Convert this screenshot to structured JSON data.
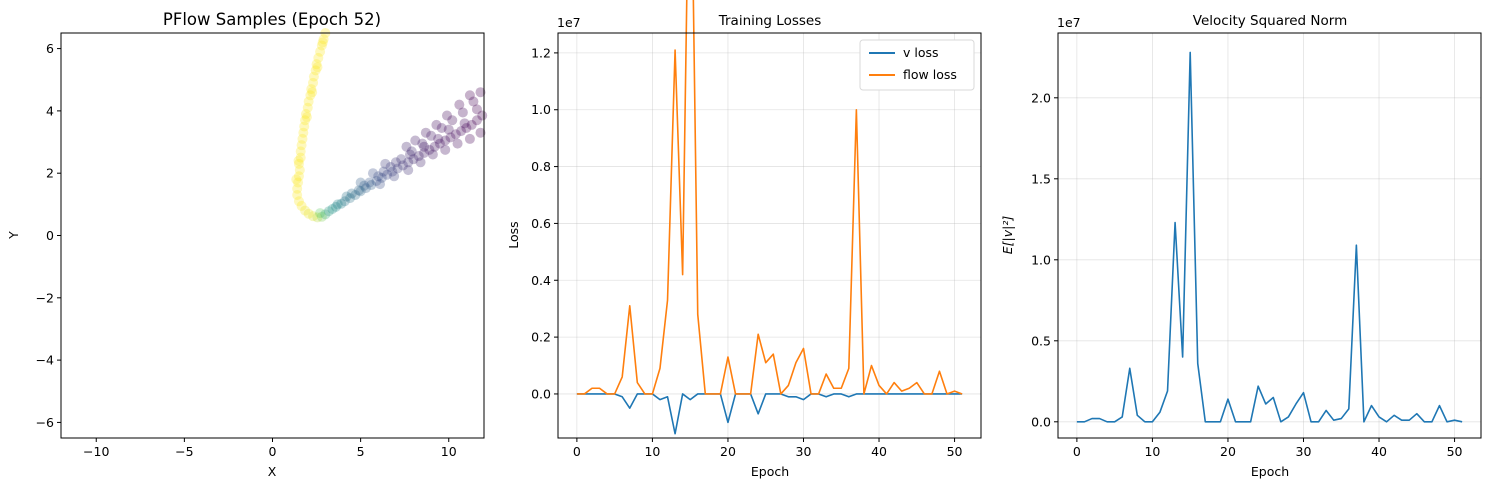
{
  "chart_data": [
    {
      "type": "scatter",
      "title": "PFlow Samples (Epoch 52)",
      "xlabel": "X",
      "ylabel": "Y",
      "xlim": [
        -12,
        12
      ],
      "ylim": [
        -6.5,
        6.5
      ],
      "xticks": [
        -10,
        -5,
        0,
        5,
        10
      ],
      "yticks": [
        -6,
        -4,
        -2,
        0,
        2,
        4,
        6
      ],
      "grid": false,
      "colormap": [
        "#440154",
        "#3b528b",
        "#21918c",
        "#5ec962",
        "#fde725"
      ],
      "point_alpha": 0.3,
      "points": [
        [
          1.4,
          1.5,
          1
        ],
        [
          1.5,
          1.9,
          1
        ],
        [
          1.5,
          2.3,
          1
        ],
        [
          1.6,
          2.7,
          1
        ],
        [
          1.7,
          3.1,
          1
        ],
        [
          1.8,
          3.5,
          1
        ],
        [
          1.9,
          3.9,
          1
        ],
        [
          2.05,
          4.3,
          1
        ],
        [
          2.2,
          4.7,
          1
        ],
        [
          2.35,
          5.1,
          1
        ],
        [
          2.5,
          5.5,
          1
        ],
        [
          2.7,
          5.9,
          1
        ],
        [
          2.9,
          6.3,
          1
        ],
        [
          3.0,
          6.5,
          1
        ],
        [
          1.45,
          1.7,
          1
        ],
        [
          1.55,
          2.1,
          1
        ],
        [
          1.6,
          2.5,
          1
        ],
        [
          1.75,
          3.3,
          1
        ],
        [
          1.85,
          3.7,
          1
        ],
        [
          2.0,
          4.1,
          1
        ],
        [
          2.15,
          4.5,
          1
        ],
        [
          2.3,
          4.9,
          1
        ],
        [
          2.45,
          5.3,
          1
        ],
        [
          2.6,
          5.7,
          1
        ],
        [
          2.8,
          6.1,
          1
        ],
        [
          1.35,
          1.8,
          1
        ],
        [
          1.48,
          2.4,
          1
        ],
        [
          1.65,
          2.9,
          1
        ],
        [
          1.95,
          3.8,
          1
        ],
        [
          2.25,
          4.6,
          1
        ],
        [
          2.55,
          5.4,
          1
        ],
        [
          2.85,
          6.2,
          1
        ],
        [
          1.4,
          1.3,
          1
        ],
        [
          1.5,
          1.1,
          1
        ],
        [
          1.65,
          0.95,
          1
        ],
        [
          1.85,
          0.8,
          0.98
        ],
        [
          2.05,
          0.7,
          0.97
        ],
        [
          2.3,
          0.62,
          0.95
        ],
        [
          2.55,
          0.58,
          0.9
        ],
        [
          2.8,
          0.6,
          0.8
        ],
        [
          2.7,
          0.72,
          0.75
        ],
        [
          3.0,
          0.68,
          0.62
        ],
        [
          3.2,
          0.78,
          0.55
        ],
        [
          3.4,
          0.85,
          0.5
        ],
        [
          3.6,
          0.92,
          0.48
        ],
        [
          3.9,
          1.02,
          0.42
        ],
        [
          4.1,
          1.1,
          0.4
        ],
        [
          4.4,
          1.2,
          0.38
        ],
        [
          4.7,
          1.3,
          0.36
        ],
        [
          5.0,
          1.42,
          0.34
        ],
        [
          5.3,
          1.52,
          0.32
        ],
        [
          5.6,
          1.62,
          0.3
        ],
        [
          5.9,
          1.75,
          0.27
        ],
        [
          6.2,
          1.85,
          0.25
        ],
        [
          6.5,
          1.95,
          0.22
        ],
        [
          6.8,
          2.05,
          0.2
        ],
        [
          7.1,
          2.15,
          0.18
        ],
        [
          7.4,
          2.25,
          0.16
        ],
        [
          7.7,
          2.35,
          0.14
        ],
        [
          8.0,
          2.45,
          0.12
        ],
        [
          8.3,
          2.55,
          0.1
        ],
        [
          8.6,
          2.65,
          0.08
        ],
        [
          8.9,
          2.75,
          0.07
        ],
        [
          9.2,
          2.85,
          0.06
        ],
        [
          9.5,
          2.95,
          0.05
        ],
        [
          9.8,
          3.05,
          0.04
        ],
        [
          10.1,
          3.15,
          0.03
        ],
        [
          10.4,
          3.25,
          0.02
        ],
        [
          10.7,
          3.35,
          0.02
        ],
        [
          11.0,
          3.45,
          0.01
        ],
        [
          11.3,
          3.55,
          0.01
        ],
        [
          11.6,
          3.7,
          0.0
        ],
        [
          11.9,
          3.85,
          0.0
        ],
        [
          4.5,
          1.35,
          0.36
        ],
        [
          5.2,
          1.6,
          0.3
        ],
        [
          6.0,
          1.9,
          0.24
        ],
        [
          6.7,
          2.2,
          0.19
        ],
        [
          7.3,
          2.45,
          0.15
        ],
        [
          7.9,
          2.7,
          0.12
        ],
        [
          8.5,
          2.95,
          0.09
        ],
        [
          9.0,
          3.2,
          0.07
        ],
        [
          9.6,
          3.45,
          0.05
        ],
        [
          10.2,
          3.7,
          0.03
        ],
        [
          10.8,
          3.95,
          0.02
        ],
        [
          11.4,
          4.3,
          0.01
        ],
        [
          11.8,
          4.6,
          0.0
        ],
        [
          11.2,
          4.5,
          0.0
        ],
        [
          10.6,
          4.2,
          0.01
        ],
        [
          9.9,
          3.85,
          0.03
        ],
        [
          9.3,
          3.55,
          0.04
        ],
        [
          8.7,
          3.3,
          0.06
        ],
        [
          8.1,
          3.05,
          0.08
        ],
        [
          7.6,
          2.85,
          0.1
        ],
        [
          6.4,
          2.3,
          0.18
        ],
        [
          5.7,
          2.0,
          0.24
        ],
        [
          5.0,
          1.7,
          0.3
        ],
        [
          6.1,
          1.65,
          0.24
        ],
        [
          6.9,
          1.9,
          0.19
        ],
        [
          7.7,
          2.1,
          0.14
        ],
        [
          8.4,
          2.35,
          0.1
        ],
        [
          9.1,
          2.6,
          0.07
        ],
        [
          9.8,
          2.75,
          0.05
        ],
        [
          10.5,
          2.95,
          0.03
        ],
        [
          11.2,
          3.1,
          0.01
        ],
        [
          11.8,
          3.3,
          0.0
        ],
        [
          3.7,
          1.0,
          0.45
        ],
        [
          4.2,
          1.25,
          0.39
        ],
        [
          4.9,
          1.45,
          0.33
        ],
        [
          5.5,
          1.7,
          0.28
        ],
        [
          6.3,
          2.05,
          0.21
        ],
        [
          7.0,
          2.35,
          0.16
        ],
        [
          7.8,
          2.6,
          0.12
        ],
        [
          8.6,
          2.85,
          0.08
        ],
        [
          9.4,
          3.1,
          0.05
        ],
        [
          10.0,
          3.4,
          0.04
        ],
        [
          10.9,
          3.6,
          0.02
        ],
        [
          11.6,
          4.05,
          0.0
        ]
      ]
    },
    {
      "type": "line",
      "title": "Training Losses",
      "xlabel": "Epoch",
      "ylabel": "Loss",
      "offset_label": "1e7",
      "xlim": [
        -2.5,
        53.5
      ],
      "ylim": [
        -0.155,
        1.27
      ],
      "xticks": [
        0,
        10,
        20,
        30,
        40,
        50
      ],
      "yticks": [
        0.0,
        0.2,
        0.4,
        0.6,
        0.8,
        1.0,
        1.2
      ],
      "ytick_labels": [
        "0.0",
        "0.2",
        "0.4",
        "0.6",
        "0.8",
        "1.0",
        "1.2"
      ],
      "grid": true,
      "legend": "top-right",
      "x": [
        0,
        1,
        2,
        3,
        4,
        5,
        6,
        7,
        8,
        9,
        10,
        11,
        12,
        13,
        14,
        15,
        16,
        17,
        18,
        19,
        20,
        21,
        22,
        23,
        24,
        25,
        26,
        27,
        28,
        29,
        30,
        31,
        32,
        33,
        34,
        35,
        36,
        37,
        38,
        39,
        40,
        41,
        42,
        43,
        44,
        45,
        46,
        47,
        48,
        49,
        50,
        51
      ],
      "series": [
        {
          "name": "v loss",
          "color": "#1f77b4",
          "values": [
            0,
            0,
            0,
            0,
            0,
            0,
            -0.01,
            -0.05,
            0,
            0,
            0,
            -0.02,
            -0.01,
            -0.14,
            0,
            -0.02,
            0,
            0,
            0,
            0,
            -0.1,
            0,
            0,
            0,
            -0.07,
            0,
            0,
            0,
            -0.01,
            -0.01,
            -0.02,
            0,
            0,
            -0.01,
            0,
            0,
            -0.01,
            0,
            0,
            0,
            0,
            0,
            0,
            0,
            0,
            0,
            0,
            0,
            0,
            0,
            0,
            0
          ]
        },
        {
          "name": "flow loss",
          "color": "#ff7f0e",
          "values": [
            0,
            0,
            0.02,
            0.02,
            0,
            0,
            0.06,
            0.31,
            0.04,
            0,
            0,
            0.09,
            0.33,
            1.21,
            0.42,
            2.19,
            0.28,
            0,
            0,
            0,
            0.13,
            0,
            0,
            0,
            0.21,
            0.11,
            0.14,
            0,
            0.03,
            0.11,
            0.16,
            0,
            0,
            0.07,
            0.02,
            0.02,
            0.09,
            1.0,
            0,
            0.1,
            0.03,
            0,
            0.04,
            0.01,
            0.02,
            0.04,
            0,
            0,
            0.08,
            0,
            0.01,
            0
          ]
        }
      ]
    },
    {
      "type": "line",
      "title": "Velocity Squared Norm",
      "xlabel": "Epoch",
      "ylabel": "E[|v|²]",
      "offset_label": "1e7",
      "xlim": [
        -2.5,
        53.5
      ],
      "ylim": [
        -0.1,
        2.4
      ],
      "xticks": [
        0,
        10,
        20,
        30,
        40,
        50
      ],
      "yticks": [
        0.0,
        0.5,
        1.0,
        1.5,
        2.0
      ],
      "ytick_labels": [
        "0.0",
        "0.5",
        "1.0",
        "1.5",
        "2.0"
      ],
      "grid": true,
      "x": [
        0,
        1,
        2,
        3,
        4,
        5,
        6,
        7,
        8,
        9,
        10,
        11,
        12,
        13,
        14,
        15,
        16,
        17,
        18,
        19,
        20,
        21,
        22,
        23,
        24,
        25,
        26,
        27,
        28,
        29,
        30,
        31,
        32,
        33,
        34,
        35,
        36,
        37,
        38,
        39,
        40,
        41,
        42,
        43,
        44,
        45,
        46,
        47,
        48,
        49,
        50,
        51
      ],
      "series": [
        {
          "color": "#1f77b4",
          "values": [
            0,
            0,
            0.02,
            0.02,
            0,
            0,
            0.03,
            0.33,
            0.04,
            0,
            0,
            0.06,
            0.19,
            1.23,
            0.4,
            2.28,
            0.36,
            0,
            0,
            0,
            0.14,
            0,
            0,
            0,
            0.22,
            0.11,
            0.15,
            0,
            0.03,
            0.11,
            0.18,
            0,
            0,
            0.07,
            0.01,
            0.02,
            0.08,
            1.09,
            0,
            0.1,
            0.03,
            0,
            0.04,
            0.01,
            0.01,
            0.05,
            0,
            0,
            0.1,
            0,
            0.01,
            0
          ]
        }
      ]
    }
  ]
}
